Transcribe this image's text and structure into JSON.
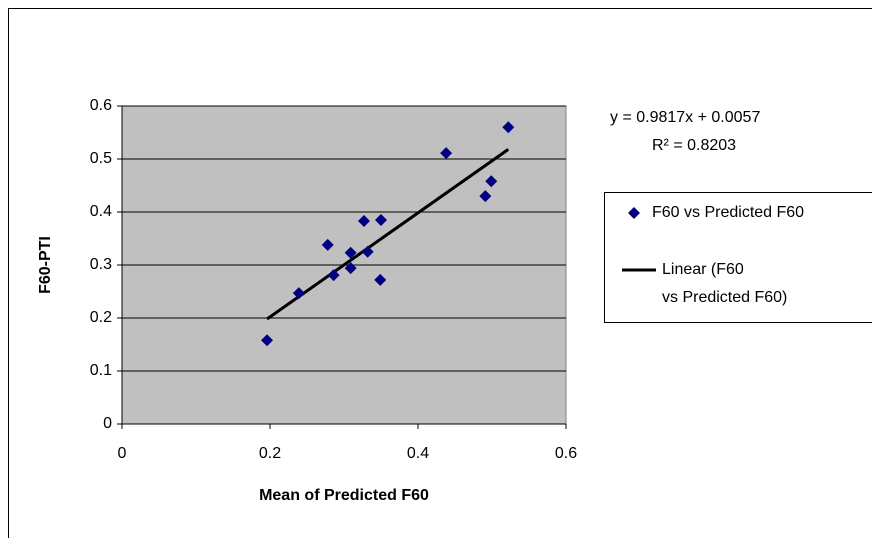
{
  "chart_data": {
    "type": "scatter",
    "x_label": "Mean of Predicted F60",
    "y_label": "F60-PTI",
    "xlim": [
      0,
      0.6
    ],
    "xticks": [
      0,
      0.2,
      0.4,
      0.6
    ],
    "ylim": [
      0,
      0.6
    ],
    "yticks": [
      0,
      0.1,
      0.2,
      0.3,
      0.4,
      0.5,
      0.6
    ],
    "grid": true,
    "legend": "right",
    "series": [
      {
        "name": "F60 vs Predicted F60",
        "color": "#000080",
        "x": [
          0.196,
          0.239,
          0.278,
          0.286,
          0.309,
          0.309,
          0.327,
          0.332,
          0.349,
          0.35,
          0.438,
          0.499,
          0.491,
          0.522
        ],
        "values": [
          0.158,
          0.247,
          0.338,
          0.281,
          0.323,
          0.294,
          0.383,
          0.325,
          0.272,
          0.385,
          0.511,
          0.458,
          0.43,
          0.56
        ]
      }
    ],
    "trendline": {
      "name": "Linear (F60 vs Predicted F60)",
      "color": "#000000",
      "equation": "y = 0.9817x + 0.0057",
      "r2_label": "R² = 0.8203",
      "slope": 0.9817,
      "intercept": 0.0057
    }
  }
}
